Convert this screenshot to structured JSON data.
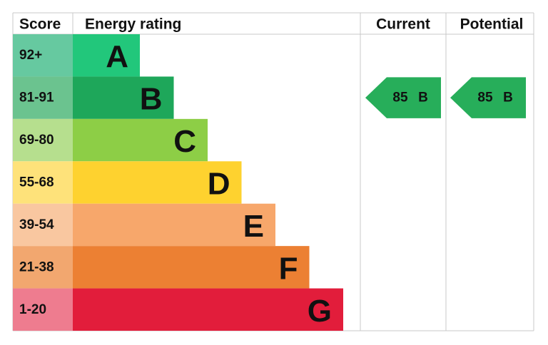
{
  "header": {
    "score": "Score",
    "energy_rating": "Energy rating",
    "current": "Current",
    "potential": "Potential"
  },
  "bands": [
    {
      "score": "92+",
      "rating": "A",
      "color": "#22c77b",
      "score_color": "#66c9a0"
    },
    {
      "score": "81-91",
      "rating": "B",
      "color": "#1ea75a",
      "score_color": "#6bc38f"
    },
    {
      "score": "69-80",
      "rating": "C",
      "color": "#8dce46",
      "score_color": "#b6df8e"
    },
    {
      "score": "55-68",
      "rating": "D",
      "color": "#fed22f",
      "score_color": "#fee27a"
    },
    {
      "score": "39-54",
      "rating": "E",
      "color": "#f7a76b",
      "score_color": "#f9c7a0"
    },
    {
      "score": "21-38",
      "rating": "F",
      "color": "#ec8033",
      "score_color": "#f2a76f"
    },
    {
      "score": "1-20",
      "rating": "G",
      "color": "#e21d3b",
      "score_color": "#ee7c8f"
    }
  ],
  "current": {
    "score": 85,
    "rating": "B",
    "color": "#27ae5a"
  },
  "potential": {
    "score": 85,
    "rating": "B",
    "color": "#27ae5a"
  }
}
